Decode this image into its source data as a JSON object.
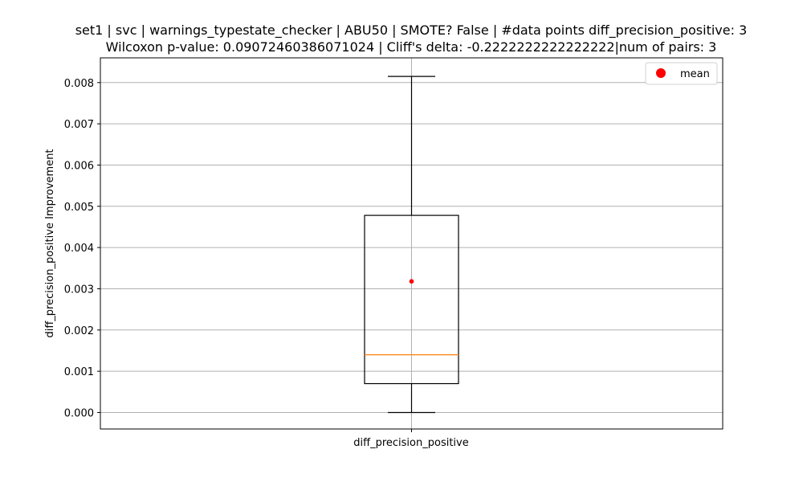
{
  "chart_data": {
    "type": "box",
    "title_line1": "set1 | svc | warnings_typestate_checker | ABU50 | SMOTE? False | #data points diff_precision_positive: 3",
    "title_line2": "Wilcoxon p-value: 0.09072460386071024 | Cliff's delta: -0.2222222222222222|num of pairs: 3",
    "xlabel": "",
    "ylabel": "diff_precision_positive Improvement",
    "categories": [
      "diff_precision_positive"
    ],
    "ylim": [
      -0.0004,
      0.0086
    ],
    "yticks": [
      0.0,
      0.001,
      0.002,
      0.003,
      0.004,
      0.005,
      0.006,
      0.007,
      0.008
    ],
    "ytick_labels": [
      "0.000",
      "0.001",
      "0.002",
      "0.003",
      "0.004",
      "0.005",
      "0.006",
      "0.007",
      "0.008"
    ],
    "box": {
      "whisker_low": 0.0,
      "q1": 0.0007,
      "median": 0.0014,
      "q3": 0.00478,
      "whisker_high": 0.00815,
      "mean": 0.00318
    },
    "legend": {
      "label": "mean",
      "placement": "top-right"
    },
    "grid": true,
    "colors": {
      "median": "#ff7f0e",
      "mean": "#ff0000",
      "grid": "#b0b0b0",
      "box": "#000000"
    }
  }
}
